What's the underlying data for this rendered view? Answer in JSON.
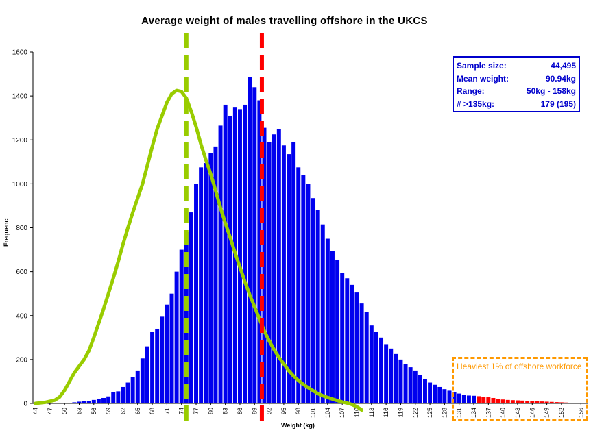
{
  "chart_data": {
    "type": "bar",
    "title": "Average weight of males travelling offshore in the UKCS",
    "xlabel": "Weight (kg)",
    "ylabel": "Frequenc",
    "ylim": [
      0,
      1600
    ],
    "yticks": [
      0,
      200,
      400,
      600,
      800,
      1000,
      1200,
      1400,
      1600
    ],
    "xlim": [
      44,
      157
    ],
    "xtick_labels": [
      44,
      47,
      50,
      53,
      56,
      59,
      62,
      65,
      68,
      71,
      74,
      77,
      80,
      83,
      86,
      89,
      92,
      95,
      98,
      101,
      104,
      107,
      110,
      113,
      116,
      119,
      122,
      125,
      128,
      131,
      134,
      137,
      140,
      143,
      146,
      149,
      152,
      156
    ],
    "grid": false,
    "bar_colors": {
      "normal": "#0000ee",
      "heaviest": "#ff0000"
    },
    "series": [
      {
        "x": [
          44,
          45,
          46,
          47,
          48,
          49,
          50,
          51,
          52,
          53,
          54,
          55,
          56,
          57,
          58,
          59,
          60,
          61,
          62,
          63,
          64,
          65,
          66,
          67,
          68,
          69,
          70,
          71,
          72,
          73,
          74,
          75,
          76,
          77,
          78,
          79,
          80,
          81,
          82,
          83,
          84,
          85,
          86,
          87,
          88,
          89,
          90,
          91,
          92,
          93,
          94,
          95,
          96,
          97,
          98,
          99,
          100,
          101,
          102,
          103,
          104,
          105,
          106,
          107,
          108,
          109,
          110,
          111,
          112,
          113,
          114,
          115,
          116,
          117,
          118,
          119,
          120,
          121,
          122,
          123,
          124,
          125,
          126,
          127,
          128,
          129,
          130,
          131,
          132,
          133,
          134,
          135,
          136,
          137,
          138,
          139,
          140,
          141,
          142,
          143,
          144,
          145,
          146,
          147,
          148,
          149,
          150,
          151,
          152,
          153,
          154,
          155,
          156
        ],
        "values": [
          0,
          0,
          0,
          0,
          0,
          0,
          2,
          3,
          5,
          8,
          10,
          12,
          16,
          20,
          25,
          32,
          50,
          55,
          75,
          95,
          120,
          150,
          205,
          260,
          325,
          340,
          395,
          450,
          500,
          600,
          700,
          780,
          870,
          1000,
          1075,
          1095,
          1140,
          1170,
          1265,
          1360,
          1310,
          1350,
          1340,
          1360,
          1485,
          1440,
          1380,
          1255,
          1190,
          1225,
          1250,
          1175,
          1135,
          1190,
          1075,
          1040,
          1000,
          935,
          880,
          815,
          750,
          695,
          655,
          595,
          570,
          540,
          505,
          455,
          415,
          355,
          325,
          300,
          270,
          250,
          225,
          200,
          180,
          165,
          150,
          130,
          110,
          95,
          85,
          75,
          65,
          58,
          52,
          45,
          40,
          36,
          35,
          33,
          30,
          28,
          25,
          20,
          18,
          16,
          15,
          14,
          13,
          12,
          11,
          10,
          9,
          8,
          7,
          6,
          5,
          4,
          3,
          2,
          1
        ]
      }
    ],
    "lines": [
      {
        "name": "",
        "color": "#99cc00",
        "x": [
          44,
          46,
          48,
          49,
          50,
          51,
          52,
          53,
          54,
          55,
          56,
          57,
          58,
          59,
          60,
          61,
          62,
          63,
          64,
          65,
          66,
          67,
          68,
          69,
          70,
          71,
          72,
          73,
          74,
          75,
          76,
          77,
          78,
          79,
          80,
          81,
          82,
          83,
          84,
          85,
          86,
          87,
          88,
          89,
          90,
          91,
          92,
          93,
          94,
          95,
          96,
          97,
          98,
          99,
          100,
          101,
          102,
          103,
          104,
          105,
          106,
          107,
          108,
          109,
          110,
          111
        ],
        "y": [
          0,
          5,
          15,
          30,
          60,
          100,
          140,
          170,
          200,
          240,
          300,
          365,
          430,
          500,
          570,
          645,
          725,
          800,
          870,
          935,
          1000,
          1085,
          1170,
          1250,
          1310,
          1370,
          1410,
          1425,
          1420,
          1390,
          1330,
          1260,
          1180,
          1110,
          1045,
          970,
          890,
          820,
          755,
          685,
          620,
          555,
          495,
          440,
          385,
          330,
          285,
          245,
          210,
          180,
          150,
          125,
          105,
          87,
          72,
          58,
          45,
          35,
          27,
          20,
          13,
          7,
          2,
          -5,
          -15,
          -30
        ]
      }
    ],
    "vlines": [
      {
        "x": 75,
        "color": "#99cc00",
        "style": "dashed"
      },
      {
        "x": 90.5,
        "color": "#ff0000",
        "style": "dashed"
      }
    ],
    "stats": [
      {
        "label": "Sample size:",
        "value": "44,495"
      },
      {
        "label": "Mean weight:",
        "value": "90.94kg"
      },
      {
        "label": "Range:",
        "value": "50kg - 158kg"
      },
      {
        "label": "# >135kg:",
        "value": "179 (195)"
      }
    ],
    "annotation": "Heaviest 1% of offshore workforce",
    "annotation_color": "#ff9900",
    "heaviest_from_x": 135
  }
}
